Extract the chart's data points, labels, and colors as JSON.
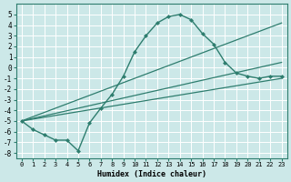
{
  "xlabel": "Humidex (Indice chaleur)",
  "background_color": "#cce8e8",
  "grid_color": "#e0f0f0",
  "line_color": "#2e7d6e",
  "xlim": [
    -0.5,
    23.5
  ],
  "ylim": [
    -8.5,
    6.0
  ],
  "xticks": [
    0,
    1,
    2,
    3,
    4,
    5,
    6,
    7,
    8,
    9,
    10,
    11,
    12,
    13,
    14,
    15,
    16,
    17,
    18,
    19,
    20,
    21,
    22,
    23
  ],
  "yticks": [
    -8,
    -7,
    -6,
    -5,
    -4,
    -3,
    -2,
    -1,
    0,
    1,
    2,
    3,
    4,
    5
  ],
  "main_x": [
    0,
    1,
    2,
    3,
    4,
    5,
    6,
    7,
    8,
    9,
    10,
    11,
    12,
    13,
    14,
    15,
    16,
    17,
    18,
    19,
    20,
    21,
    22,
    23
  ],
  "main_y": [
    -5.0,
    -5.8,
    -6.3,
    -6.8,
    -6.8,
    -7.8,
    -5.2,
    -3.8,
    -2.5,
    -0.8,
    1.5,
    3.0,
    4.2,
    4.8,
    5.0,
    4.5,
    3.2,
    2.2,
    0.5,
    -0.5,
    -0.8,
    -1.0,
    -0.8,
    -0.8
  ],
  "line2_x": [
    0,
    23
  ],
  "line2_y": [
    -5.0,
    4.2
  ],
  "line3_x": [
    0,
    23
  ],
  "line3_y": [
    -5.0,
    0.5
  ],
  "line4_x": [
    0,
    23
  ],
  "line4_y": [
    -5.0,
    -1.0
  ]
}
